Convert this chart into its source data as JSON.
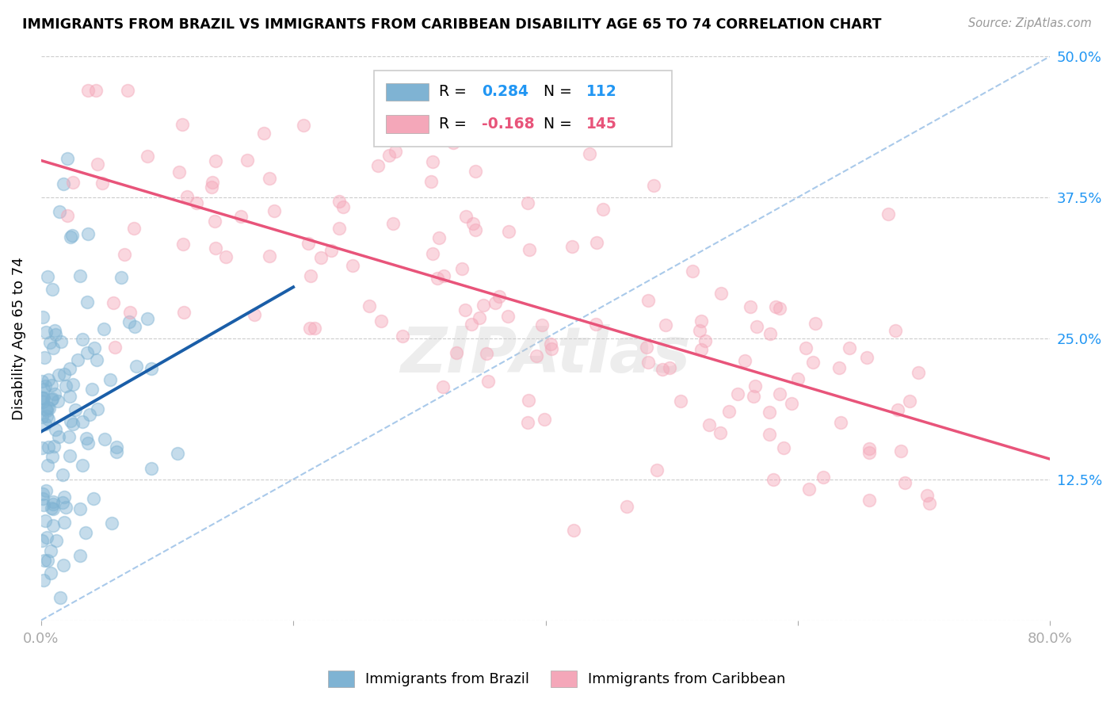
{
  "title": "IMMIGRANTS FROM BRAZIL VS IMMIGRANTS FROM CARIBBEAN DISABILITY AGE 65 TO 74 CORRELATION CHART",
  "source": "Source: ZipAtlas.com",
  "ylabel": "Disability Age 65 to 74",
  "xlim": [
    0.0,
    0.8
  ],
  "ylim": [
    0.0,
    0.5
  ],
  "brazil_color": "#7fb3d3",
  "caribbean_color": "#f4a7b9",
  "brazil_R": 0.284,
  "brazil_N": 112,
  "caribbean_R": -0.168,
  "caribbean_N": 145,
  "brazil_line_color": "#1a5ea8",
  "caribbean_line_color": "#e8547a",
  "diag_line_color": "#a0c4e8",
  "tick_color": "#2196F3",
  "watermark": "ZIPAtlas",
  "legend_label_brazil": "Immigrants from Brazil",
  "legend_label_caribbean": "Immigrants from Caribbean",
  "brazil_seed": 42,
  "caribbean_seed": 7
}
